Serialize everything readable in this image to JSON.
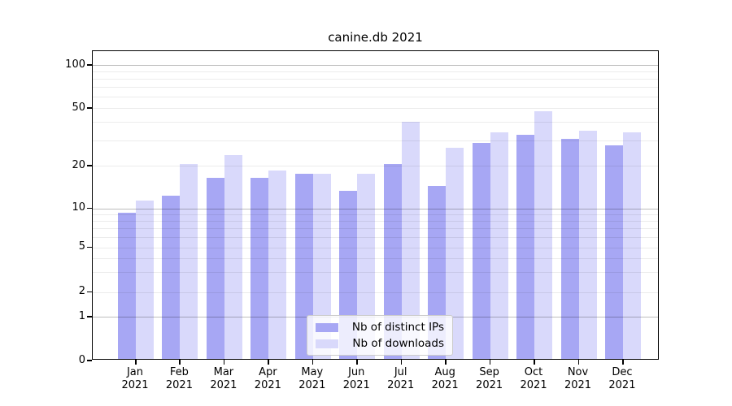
{
  "title": "canine.db 2021",
  "chart_data": {
    "type": "bar",
    "title": "canine.db 2021",
    "x_categories": [
      "Jan\n2021",
      "Feb\n2021",
      "Mar\n2021",
      "Apr\n2021",
      "May\n2021",
      "Jun\n2021",
      "Jul\n2021",
      "Aug\n2021",
      "Sep\n2021",
      "Oct\n2021",
      "Nov\n2021",
      "Dec\n2021"
    ],
    "series": [
      {
        "name": "Nb of distinct IPs",
        "color": "#a7a7f4",
        "values": [
          9,
          12,
          16,
          16,
          17,
          13,
          20,
          14,
          28,
          32,
          30,
          27
        ]
      },
      {
        "name": "Nb of downloads",
        "color": "#d9d9fb",
        "values": [
          11,
          20,
          23,
          18,
          17,
          17,
          39,
          26,
          33,
          46,
          34,
          33
        ]
      }
    ],
    "xlabel": "",
    "ylabel": "",
    "y_axis_scale": "symlog",
    "y_tick_labels": [
      0,
      1,
      2,
      5,
      10,
      20,
      50,
      100
    ],
    "y_minor_gridlines": [
      3,
      4,
      6,
      7,
      8,
      9,
      30,
      40,
      60,
      70,
      80,
      90
    ],
    "y_major_gridlines": [
      1,
      10,
      100
    ],
    "ylim": [
      0,
      120
    ],
    "grid": "horizontal",
    "legend_position": "lower center"
  }
}
